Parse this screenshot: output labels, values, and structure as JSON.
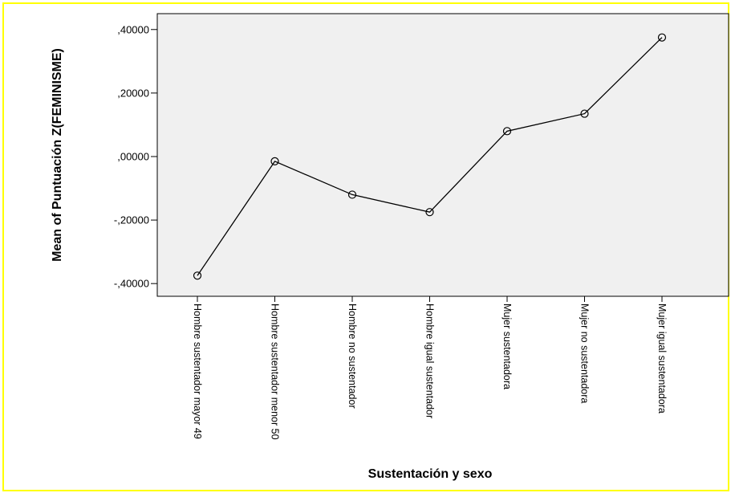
{
  "colors": {
    "frame_border": "#ffff00",
    "plot_background": "#f0f0f0",
    "line": "#000000"
  },
  "chart_data": {
    "type": "line",
    "title": "",
    "xlabel": "Sustentación y sexo",
    "ylabel": "Mean of Puntuación Z(FEMINISME)",
    "categories": [
      "Hombre sustentador mayor 49",
      "Hombre sustentador menor 50",
      "Hombre no sustentador",
      "Hombre igual sustentador",
      "Mujer sustentadora",
      "Mujer no sustentadora",
      "Mujer igual sustentadora"
    ],
    "values": [
      -0.375,
      -0.015,
      -0.12,
      -0.175,
      0.08,
      0.135,
      0.375
    ],
    "ylim": [
      -0.44,
      0.45
    ],
    "yticks": [
      -0.4,
      -0.2,
      0.0,
      0.2,
      0.4
    ],
    "ytick_labels": [
      "-,40000",
      "-,20000",
      ",00000",
      ",20000",
      ",40000"
    ],
    "grid": false,
    "legend": "none",
    "marker": "open-circle"
  }
}
